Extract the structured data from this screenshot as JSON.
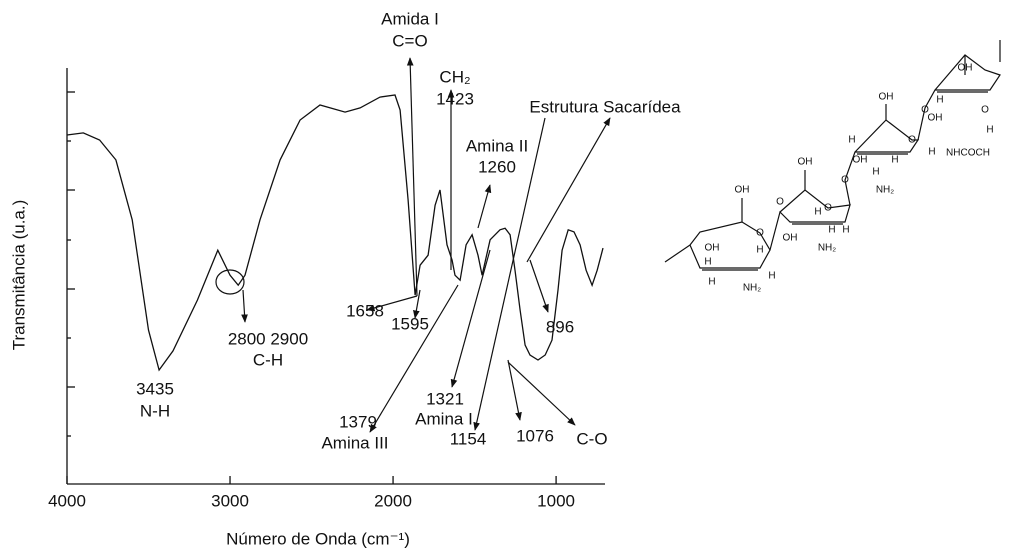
{
  "chart_data": {
    "type": "line",
    "xlabel": "Número de Onda (cm⁻¹)",
    "ylabel": "Transmitância (u.a.)",
    "xlim": [
      4000,
      700
    ],
    "ylim": [
      0,
      100
    ],
    "xticks": [
      4000,
      3000,
      2000,
      1000
    ],
    "color": "#111111",
    "x": [
      4000,
      3900,
      3800,
      3700,
      3600,
      3500,
      3435,
      3350,
      3200,
      3075,
      3000,
      2950,
      2908,
      2816,
      2693,
      2570,
      2448,
      2294,
      2202,
      2080,
      1988,
      1957,
      1908,
      1865,
      1834,
      1785,
      1742,
      1712,
      1669,
      1638,
      1620,
      1589,
      1552,
      1515,
      1479,
      1454,
      1405,
      1344,
      1313,
      1282,
      1252,
      1221,
      1190,
      1160,
      1111,
      1067,
      1025,
      988,
      963,
      926,
      890,
      853,
      816,
      779,
      748,
      712
    ],
    "values": [
      83.9,
      84.4,
      82.7,
      77.9,
      63.5,
      37,
      27.4,
      32,
      44.2,
      56.2,
      50.2,
      47.8,
      50.2,
      63.5,
      77.9,
      87.5,
      91.1,
      89.4,
      90.4,
      93,
      93.5,
      89.9,
      68.3,
      45.4,
      52.6,
      55,
      67,
      70.7,
      57.5,
      53.8,
      50.2,
      49,
      57.5,
      59.9,
      55,
      50.2,
      58.7,
      61.1,
      61.5,
      59.9,
      51.4,
      41.8,
      33.4,
      31,
      29.8,
      31,
      34.6,
      46.6,
      56.2,
      61.1,
      60.6,
      57.5,
      51.4,
      47.8,
      51.4,
      56.7
    ],
    "annotations": [
      "Amida I",
      "C=O",
      "CH₂",
      "1423",
      "Estrutura Sacarídea",
      "Amina II",
      "1260",
      "1658",
      "1595",
      "2800 2900",
      "C-H",
      "3435",
      "N-H",
      "896",
      "1379",
      "Amina III",
      "1321",
      "Amina I",
      "1154",
      "1076",
      "C-O"
    ]
  },
  "structure": {
    "labels": [
      "OH",
      "O",
      "OH",
      "H",
      "H",
      "H",
      "NH₂",
      "H",
      "OH",
      "O",
      "O",
      "OH",
      "H",
      "H",
      "NH₂",
      "H",
      "OH",
      "O",
      "O",
      "OH",
      "H",
      "H",
      "NH₂",
      "H",
      "OH",
      "O",
      "O",
      "OH",
      "H",
      "H",
      "NHCOCH",
      "H"
    ]
  }
}
